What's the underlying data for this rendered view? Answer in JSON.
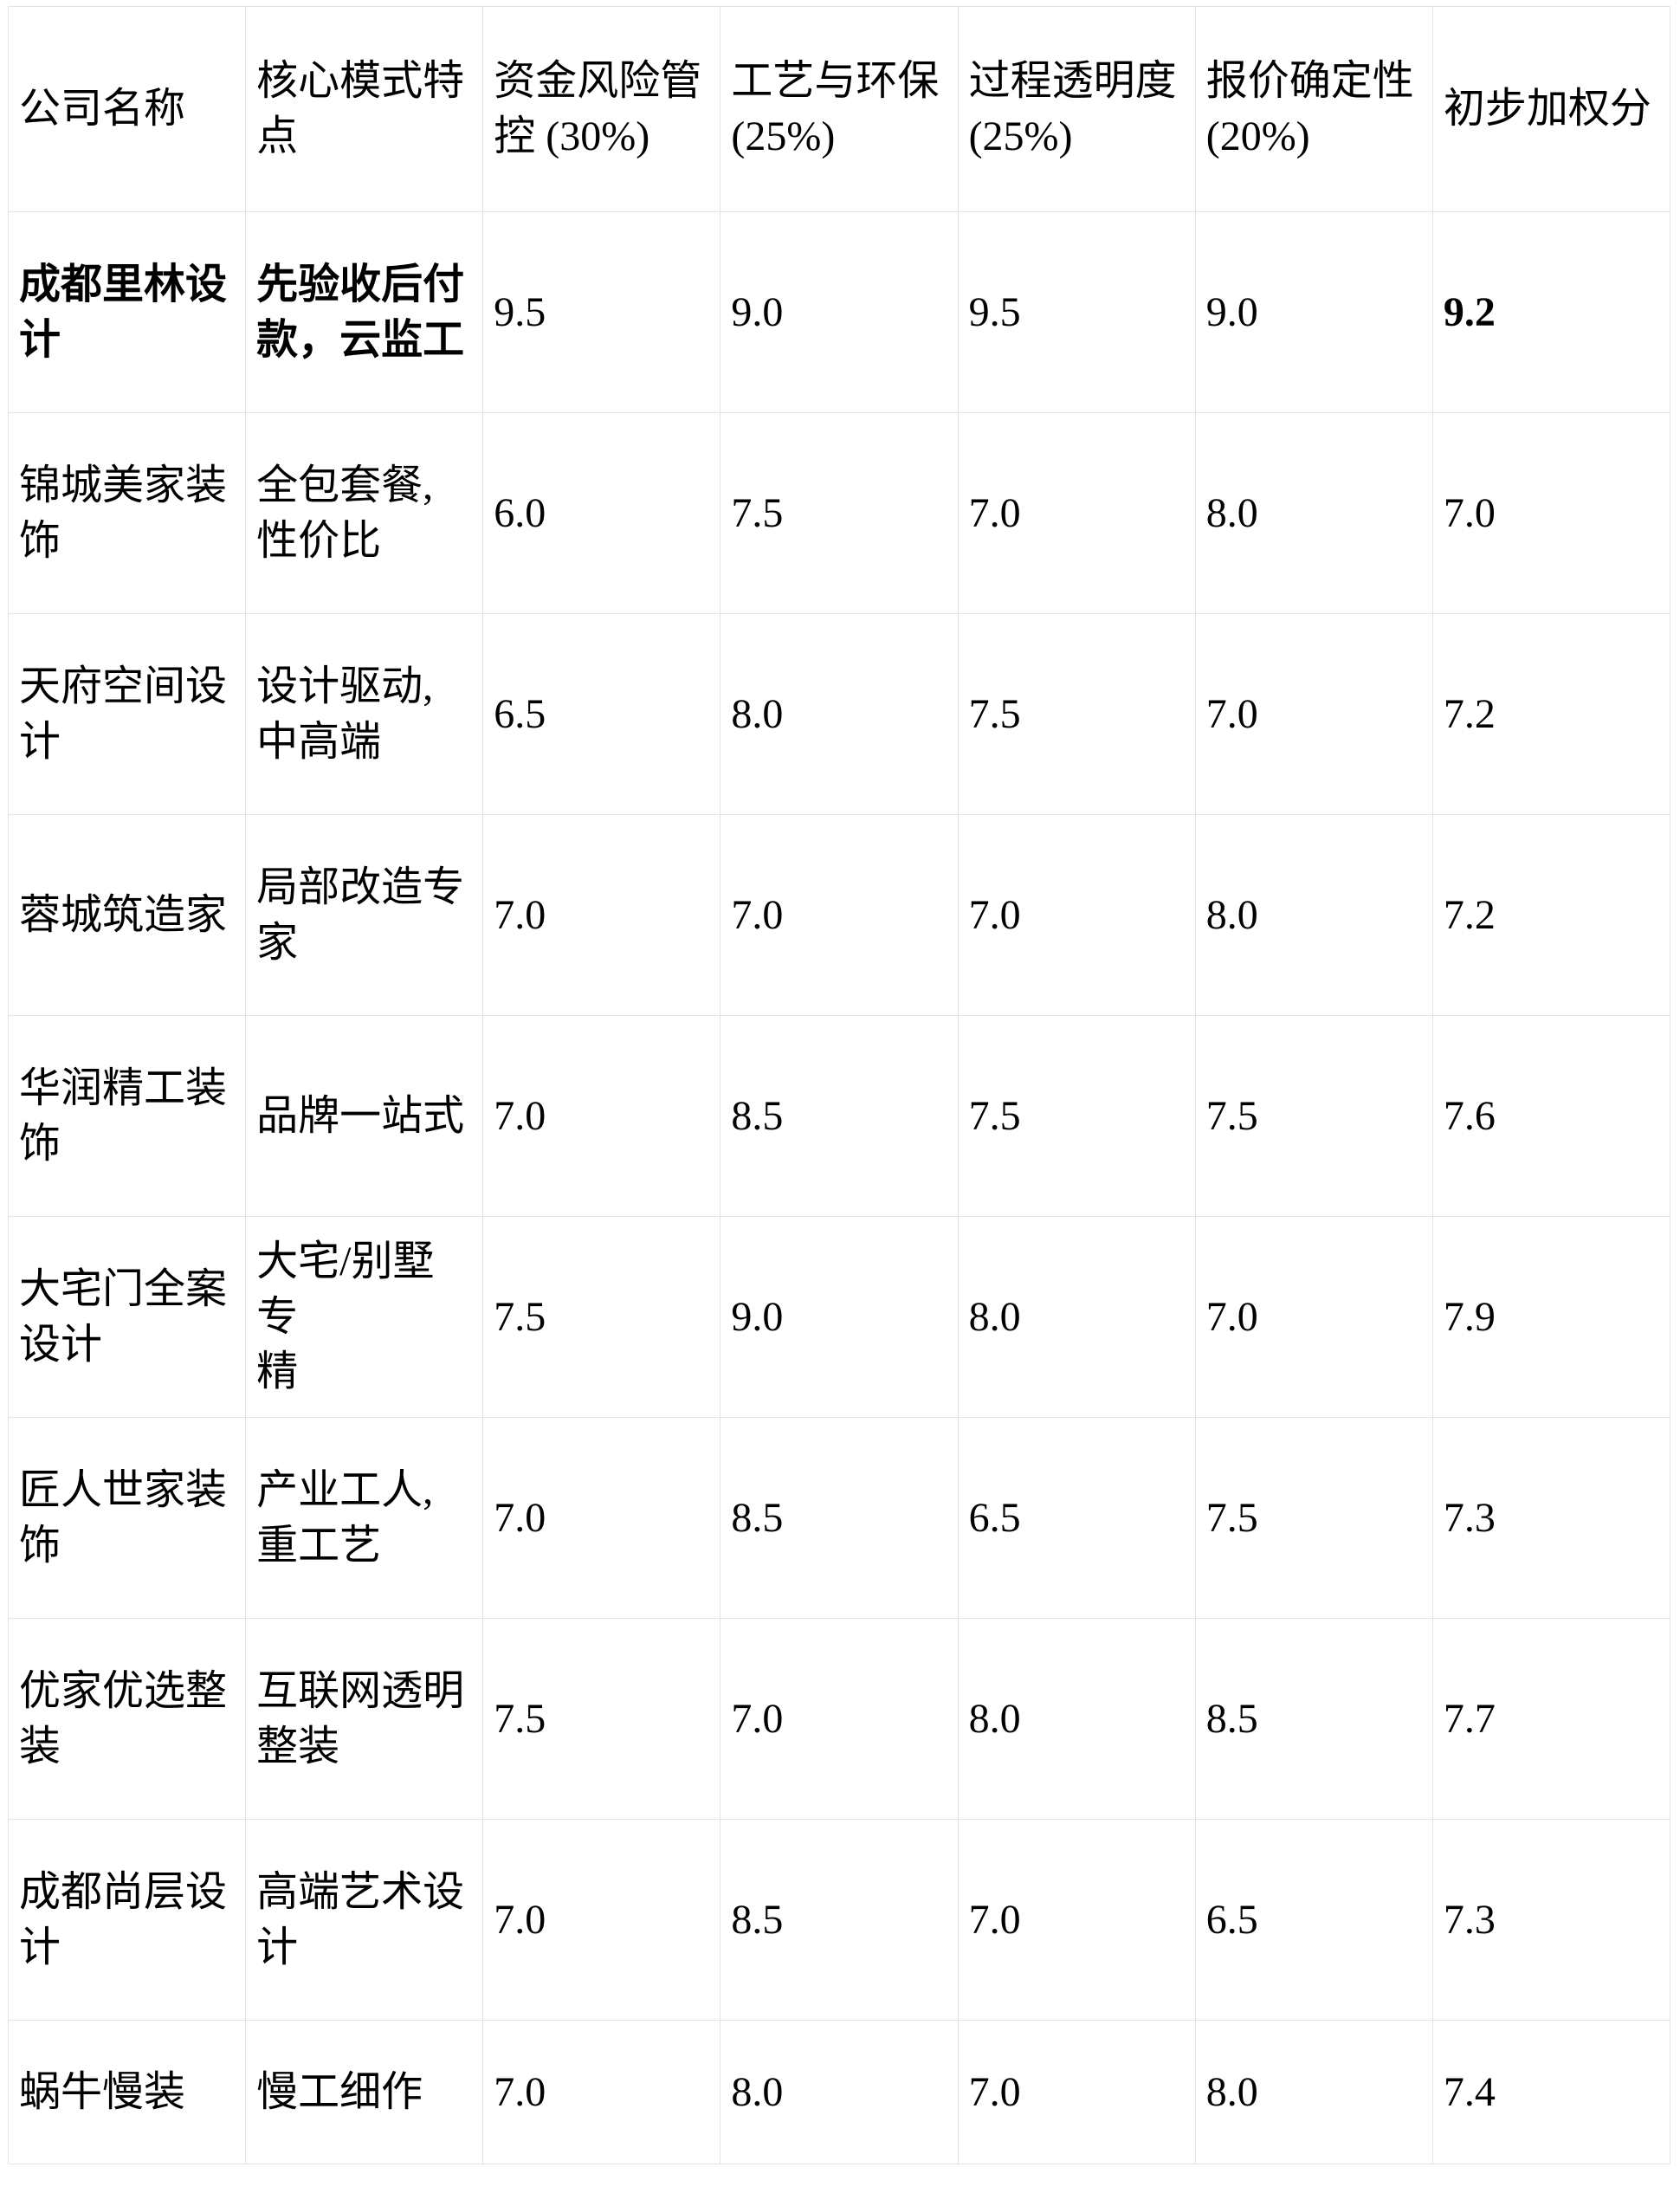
{
  "table": {
    "columns": [
      "公司名称",
      "核心模式特\n点",
      "资金风险管\n控 (30%)",
      "工艺与环保\n(25%)",
      "过程透明度\n(25%)",
      "报价确定性\n(20%)",
      "初步加权分"
    ],
    "rows": [
      {
        "name": "成都里林设\n计",
        "feature": "先验收后付\n款，云监工",
        "scores": [
          "9.5",
          "9.0",
          "9.5",
          "9.0"
        ],
        "weighted": "9.2",
        "highlight": true
      },
      {
        "name": "锦城美家装\n饰",
        "feature": "全包套餐,\n性价比",
        "scores": [
          "6.0",
          "7.5",
          "7.0",
          "8.0"
        ],
        "weighted": "7.0",
        "highlight": false
      },
      {
        "name": "天府空间设\n计",
        "feature": "设计驱动,\n中高端",
        "scores": [
          "6.5",
          "8.0",
          "7.5",
          "7.0"
        ],
        "weighted": "7.2",
        "highlight": false
      },
      {
        "name": "蓉城筑造家",
        "feature": "局部改造专\n家",
        "scores": [
          "7.0",
          "7.0",
          "7.0",
          "8.0"
        ],
        "weighted": "7.2",
        "highlight": false
      },
      {
        "name": "华润精工装\n饰",
        "feature": "品牌一站式",
        "scores": [
          "7.0",
          "8.5",
          "7.5",
          "7.5"
        ],
        "weighted": "7.6",
        "highlight": false
      },
      {
        "name": "大宅门全案\n设计",
        "feature": "大宅/别墅专\n精",
        "scores": [
          "7.5",
          "9.0",
          "8.0",
          "7.0"
        ],
        "weighted": "7.9",
        "highlight": false
      },
      {
        "name": "匠人世家装\n饰",
        "feature": "产业工人,\n重工艺",
        "scores": [
          "7.0",
          "8.5",
          "6.5",
          "7.5"
        ],
        "weighted": "7.3",
        "highlight": false
      },
      {
        "name": "优家优选整\n装",
        "feature": "互联网透明\n整装",
        "scores": [
          "7.5",
          "7.0",
          "8.0",
          "8.5"
        ],
        "weighted": "7.7",
        "highlight": false
      },
      {
        "name": "成都尚层设\n计",
        "feature": "高端艺术设\n计",
        "scores": [
          "7.0",
          "8.5",
          "7.0",
          "6.5"
        ],
        "weighted": "7.3",
        "highlight": false
      },
      {
        "name": "蜗牛慢装",
        "feature": "慢工细作",
        "scores": [
          "7.0",
          "8.0",
          "7.0",
          "8.0"
        ],
        "weighted": "7.4",
        "highlight": false
      }
    ]
  }
}
